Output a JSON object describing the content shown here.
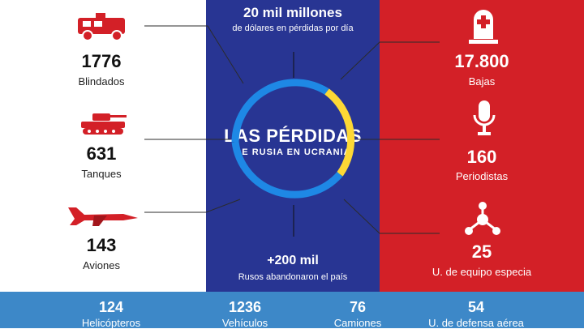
{
  "center": {
    "top_value": "20 mil millones",
    "top_caption": "de dólares en pérdidas por día",
    "title_line1": "LAS PÉRDIDAS",
    "title_line2": "DE RUSIA EN UCRANIA",
    "bottom_value": "+200 mil",
    "bottom_caption": "Rusos abandonaron el país"
  },
  "left_stats": [
    {
      "value": "1776",
      "label": "Blindados",
      "icon": "armored-vehicle-icon"
    },
    {
      "value": "631",
      "label": "Tanques",
      "icon": "tank-icon"
    },
    {
      "value": "143",
      "label": "Aviones",
      "icon": "fighter-jet-icon"
    }
  ],
  "right_stats": [
    {
      "value": "17.800",
      "label": "Bajas",
      "icon": "gravestone-icon"
    },
    {
      "value": "160",
      "label": "Periodistas",
      "icon": "microphone-icon"
    },
    {
      "value": "25",
      "label": "U. de equipo especia",
      "icon": "network-icon"
    }
  ],
  "bottom_stats": [
    {
      "value": "124",
      "label": "Helicópteros"
    },
    {
      "value": "1236",
      "label": "Vehículos"
    },
    {
      "value": "76",
      "label": "Camiones"
    },
    {
      "value": "54",
      "label": "U. de defensa aérea"
    }
  ],
  "colors": {
    "left_bg": "#ffffff",
    "center_bg": "#283593",
    "right_bg": "#d32027",
    "bottom_bg": "#3d88c8",
    "icon_red": "#d32027",
    "ring_blue": "#1e88e5",
    "ring_yellow": "#fdd835"
  }
}
